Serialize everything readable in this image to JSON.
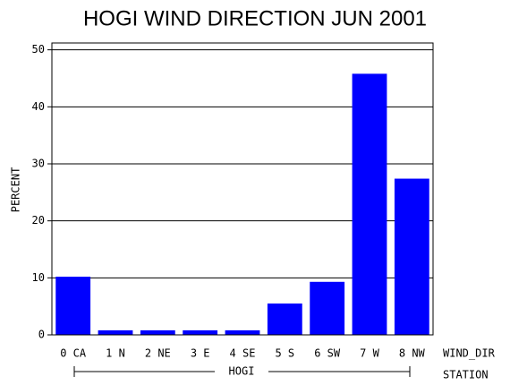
{
  "chart_data": {
    "type": "bar",
    "title": "HOGI WIND DIRECTION JUN 2001",
    "y_label": "PERCENT",
    "x_label": "WIND_DIR",
    "group_axis_label": "STATION",
    "group": "HOGI",
    "categories": [
      "0 CA",
      "1 N",
      "2 NE",
      "3 E",
      "4 SE",
      "5 S",
      "6 SW",
      "7 W",
      "8 NW"
    ],
    "values": [
      10.2,
      0.8,
      0.8,
      0.8,
      0.8,
      5.5,
      9.3,
      45.8,
      27.4
    ],
    "color": "#0000ff",
    "ylim": [
      0,
      51.2
    ],
    "yticks": [
      0,
      10,
      20,
      30,
      40,
      50
    ],
    "grid": true
  }
}
